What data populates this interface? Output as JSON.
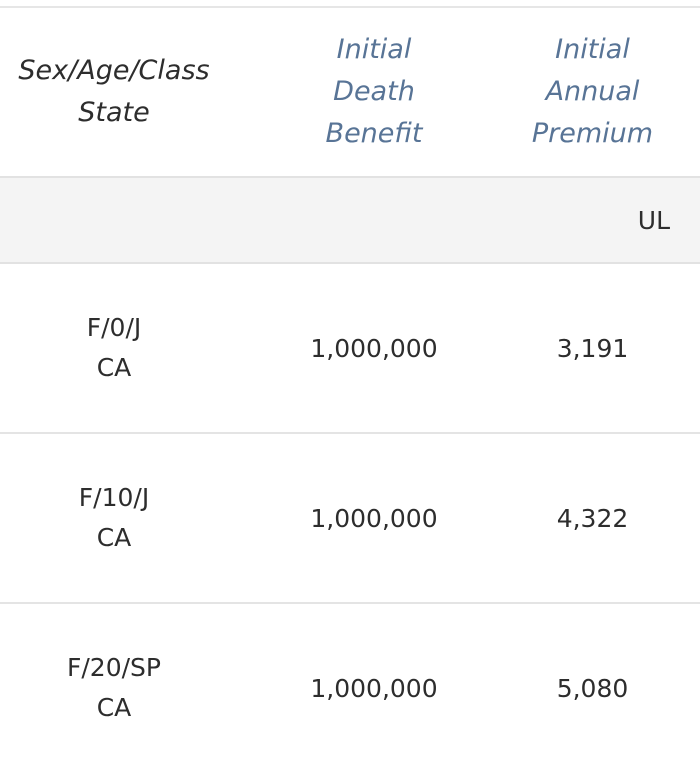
{
  "table": {
    "headers": [
      "Sex/Age/Class\nState",
      "Initial\nDeath\nBenefit",
      "Initial\nAnnual\nPremium"
    ],
    "group_label": "UL",
    "rows": [
      {
        "sex_age_class": "F/0/J",
        "state": "CA",
        "death_benefit": "1,000,000",
        "annual_premium": "3,191"
      },
      {
        "sex_age_class": "F/10/J",
        "state": "CA",
        "death_benefit": "1,000,000",
        "annual_premium": "4,322"
      },
      {
        "sex_age_class": "F/20/SP",
        "state": "CA",
        "death_benefit": "1,000,000",
        "annual_premium": "5,080"
      }
    ]
  }
}
